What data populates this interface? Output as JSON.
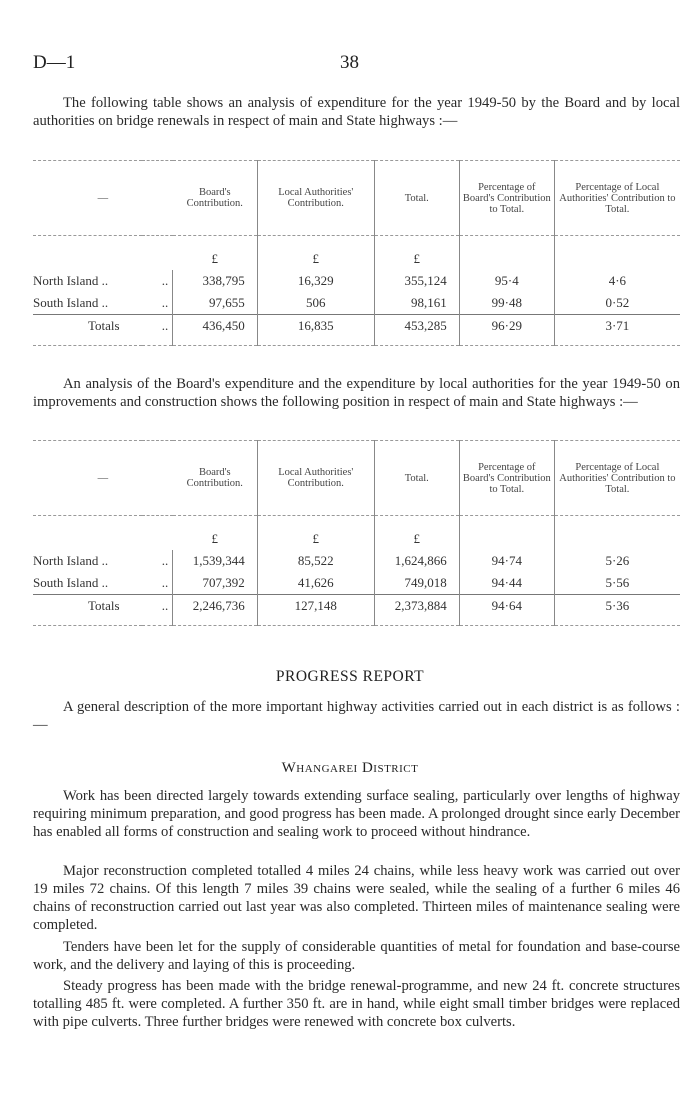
{
  "header": {
    "left": "D—1",
    "page_number": "38"
  },
  "para1": "The following table shows an analysis of expenditure for the year 1949-50 by the Board and by local authorities on bridge renewals in respect of main and State highways :—",
  "table_headers": [
    "—",
    "Board's Contribution.",
    "Local Authorities' Contribution.",
    "Total.",
    "Percentage of Board's Contribution to Total.",
    "Percentage of Local Authorities' Contribution to Total."
  ],
  "currency": "£",
  "table1": {
    "rows": [
      {
        "label": "North Island ..",
        "dots": "..",
        "board": "338,795",
        "local": "16,329",
        "total": "355,124",
        "pct_board": "95·4",
        "pct_local": "4·6"
      },
      {
        "label": "South Island ..",
        "dots": "..",
        "board": "97,655",
        "local": "506",
        "total": "98,161",
        "pct_board": "99·48",
        "pct_local": "0·52"
      },
      {
        "label": "Totals",
        "dots": "..",
        "board": "436,450",
        "local": "16,835",
        "total": "453,285",
        "pct_board": "96·29",
        "pct_local": "3·71"
      }
    ]
  },
  "para2": "An analysis of the Board's expenditure and the expenditure by local authorities for the year 1949-50 on improvements and construction shows the following position in respect of main and State highways :—",
  "table2": {
    "rows": [
      {
        "label": "North Island ..",
        "dots": "..",
        "board": "1,539,344",
        "local": "85,522",
        "total": "1,624,866",
        "pct_board": "94·74",
        "pct_local": "5·26"
      },
      {
        "label": "South Island ..",
        "dots": "..",
        "board": "707,392",
        "local": "41,626",
        "total": "749,018",
        "pct_board": "94·44",
        "pct_local": "5·56"
      },
      {
        "label": "Totals",
        "dots": "..",
        "board": "2,246,736",
        "local": "127,148",
        "total": "2,373,884",
        "pct_board": "94·64",
        "pct_local": "5·36"
      }
    ]
  },
  "progress_heading": "PROGRESS REPORT",
  "progress_intro": "A general description of the more important highway activities carried out in each district is as follows :—",
  "district_heading": "Whangarei District",
  "district_paras": [
    "Work has been directed largely towards extending surface sealing, particularly over lengths of highway requiring minimum preparation, and good progress has been made. A prolonged drought since early December has enabled all forms of construction and sealing work to proceed without hindrance.",
    "Major reconstruction completed totalled 4 miles 24 chains, while less heavy work was carried out over 19 miles 72 chains. Of this length 7 miles 39 chains were sealed, while the sealing of a further 6 miles 46 chains of reconstruction carried out last year was also completed. Thirteen miles of maintenance sealing were completed.",
    "Tenders have been let for the supply of considerable quantities of metal for foundation and base-course work, and the delivery and laying of this is proceeding.",
    "Steady progress has been made with the bridge renewal-programme, and new 24 ft. concrete structures totalling 485 ft. were completed. A further 350 ft. are in hand, while eight small timber bridges were replaced with pipe culverts. Three further bridges were renewed with concrete box culverts."
  ]
}
